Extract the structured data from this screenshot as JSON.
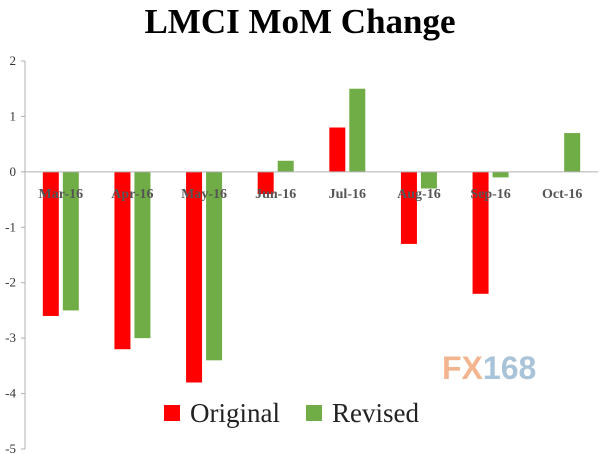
{
  "chart_data": {
    "type": "bar",
    "title": "LMCI MoM Change",
    "xlabel": "",
    "ylabel": "",
    "categories": [
      "Mar-16",
      "Apr-16",
      "May-16",
      "Jun-16",
      "Jul-16",
      "Aug-16",
      "Sep-16",
      "Oct-16"
    ],
    "series": [
      {
        "name": "Original",
        "color": "#ff0000",
        "values": [
          -2.6,
          -3.2,
          -3.8,
          -0.4,
          0.8,
          -1.3,
          -2.2,
          null
        ]
      },
      {
        "name": "Revised",
        "color": "#70ad47",
        "values": [
          -2.5,
          -3.0,
          -3.4,
          0.2,
          1.5,
          -0.3,
          -0.1,
          0.7
        ]
      }
    ],
    "ylim": [
      -5,
      2
    ],
    "yticks": [
      2,
      1,
      0,
      -1,
      -2,
      -3,
      -4,
      -5
    ],
    "grid": false,
    "legend_position": "bottom"
  },
  "watermark": {
    "part_a": "FX",
    "part_b": "168"
  }
}
